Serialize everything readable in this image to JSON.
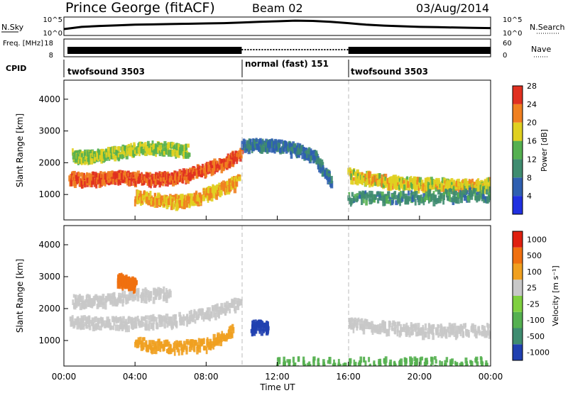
{
  "header": {
    "station": "Prince George (fitACF)",
    "beam": "Beam 02",
    "date": "03/Aug/2014"
  },
  "chart_data": [
    {
      "type": "line",
      "panel": "noise",
      "left_label": "N.Sky",
      "right_label": "N.Search",
      "left_ticks": [
        "10^5",
        "10^0"
      ],
      "right_ticks": [
        "10^5",
        "10^0"
      ],
      "series": [
        {
          "name": "N.Sky",
          "x": [
            0,
            1,
            2,
            3,
            4,
            5,
            6,
            7,
            8,
            9,
            10,
            11,
            12,
            13,
            14,
            15,
            16,
            17,
            18,
            19,
            20,
            21,
            22,
            23,
            24
          ],
          "y": [
            1.6,
            2.3,
            2.6,
            2.8,
            3.0,
            3.1,
            3.2,
            3.3,
            3.4,
            3.5,
            3.7,
            3.9,
            4.1,
            4.3,
            4.2,
            3.9,
            3.5,
            3.0,
            2.7,
            2.5,
            2.3,
            2.2,
            2.1,
            2.0,
            1.9
          ]
        }
      ]
    },
    {
      "type": "line",
      "panel": "frequency",
      "left_label": "Freq. [MHz]",
      "right_label": "Nave",
      "left_ticks": [
        "18",
        "8"
      ],
      "right_ticks": [
        "60",
        "0"
      ],
      "note_segments": [
        {
          "from": 0.2,
          "to": 10.0,
          "style": "solid"
        },
        {
          "from": 10.0,
          "to": 16.0,
          "style": "dotted"
        },
        {
          "from": 16.0,
          "to": 24.0,
          "style": "solid"
        }
      ]
    },
    {
      "type": "table",
      "panel": "cpid",
      "label": "CPID",
      "segments": [
        {
          "name": "twofsound 3503",
          "from": 0.2,
          "to": 10.0
        },
        {
          "name": "normal (fast) 151",
          "from": 10.0,
          "to": 16.0
        },
        {
          "name": "twofsound 3503",
          "from": 16.0,
          "to": 24.0
        }
      ]
    },
    {
      "type": "heatmap",
      "panel": "power",
      "ylabel": "Slant Range [km]",
      "yticks": [
        "1000",
        "2000",
        "3000",
        "4000"
      ],
      "ylim": [
        200,
        4600
      ],
      "colorbar_label": "Power [dB]",
      "colorbar_ticks": [
        "4",
        "8",
        "12",
        "16",
        "20",
        "24",
        "28"
      ],
      "colorbar_colors": [
        "#2030e0",
        "#2f5fb0",
        "#3f8c70",
        "#55b050",
        "#e0d020",
        "#f08020",
        "#e03020"
      ],
      "echo_bands": [
        {
          "x": [
            0.3,
            1,
            2,
            3,
            4,
            5,
            6,
            7,
            8,
            9,
            10
          ],
          "y": [
            1600,
            1550,
            1580,
            1620,
            1600,
            1560,
            1600,
            1700,
            1900,
            2100,
            2400
          ],
          "power": 26
        },
        {
          "x": [
            0.5,
            1,
            2,
            3,
            4,
            5,
            6,
            7
          ],
          "y": [
            2300,
            2250,
            2300,
            2400,
            2500,
            2550,
            2500,
            2450
          ],
          "power": 18
        },
        {
          "x": [
            4,
            5,
            6,
            7,
            8,
            9,
            9.8
          ],
          "y": [
            1000,
            950,
            850,
            900,
            1100,
            1300,
            1500
          ],
          "power": 22
        },
        {
          "x": [
            16,
            17,
            18,
            19,
            20,
            21,
            22,
            23,
            24
          ],
          "y": [
            1700,
            1600,
            1500,
            1450,
            1400,
            1400,
            1350,
            1350,
            1400
          ],
          "power": 20
        },
        {
          "x": [
            10,
            11,
            12,
            13,
            14,
            15
          ],
          "y": [
            2600,
            2650,
            2600,
            2500,
            2300,
            1500
          ],
          "power": 10
        },
        {
          "x": [
            16,
            18,
            20,
            22,
            24
          ],
          "y": [
            1000,
            950,
            1000,
            1050,
            1100
          ],
          "power": 12
        }
      ]
    },
    {
      "type": "heatmap",
      "panel": "velocity",
      "ylabel": "Slant Range [km]",
      "yticks": [
        "1000",
        "2000",
        "3000",
        "4000"
      ],
      "ylim": [
        200,
        4600
      ],
      "colorbar_label": "Velocity [m s⁻¹]",
      "colorbar_ticks": [
        "1000",
        "500",
        "100",
        "25",
        "-25",
        "-100",
        "-500",
        "-1000"
      ],
      "colorbar_colors": [
        "#2040b0",
        "#3f8c70",
        "#55b050",
        "#7fd040",
        "#c8c8c8",
        "#f0a020",
        "#f07010",
        "#e02010"
      ],
      "echo_bands": [
        {
          "x": [
            0.3,
            2,
            4,
            6,
            8,
            10
          ],
          "y": [
            1700,
            1600,
            1650,
            1700,
            1900,
            2300
          ],
          "velocity": 0
        },
        {
          "x": [
            0.5,
            2,
            4,
            6
          ],
          "y": [
            2300,
            2300,
            2500,
            2550
          ],
          "velocity": 0
        },
        {
          "x": [
            3,
            3.5,
            4
          ],
          "y": [
            3000,
            2900,
            2800
          ],
          "velocity": -300
        },
        {
          "x": [
            4,
            6,
            8,
            9.5
          ],
          "y": [
            1000,
            850,
            950,
            1400
          ],
          "velocity": -150
        },
        {
          "x": [
            10.5,
            11.5
          ],
          "y": [
            1500,
            1500
          ],
          "velocity": 400
        },
        {
          "x": [
            16,
            18,
            20,
            22,
            24
          ],
          "y": [
            1600,
            1500,
            1400,
            1400,
            1400
          ],
          "velocity": 0
        },
        {
          "x": [
            12,
            16,
            20,
            24
          ],
          "y": [
            350,
            350,
            350,
            350
          ],
          "velocity": 150
        }
      ]
    }
  ],
  "xaxis": {
    "label": "Time UT",
    "ticks": [
      "00:00",
      "04:00",
      "08:00",
      "12:00",
      "16:00",
      "20:00",
      "00:00"
    ],
    "xlim": [
      0,
      24
    ]
  }
}
